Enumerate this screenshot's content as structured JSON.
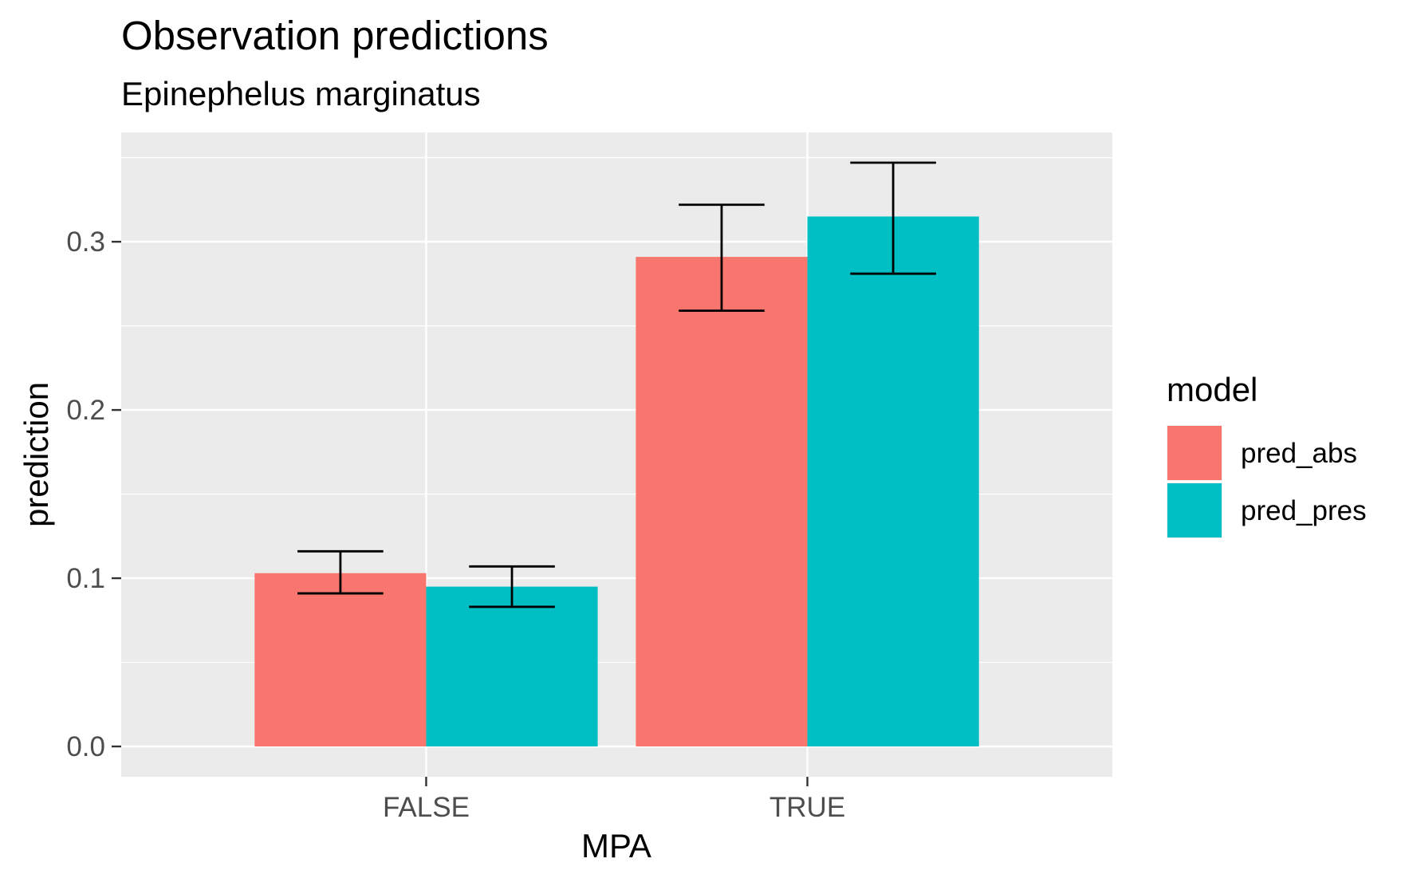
{
  "chart_data": {
    "type": "bar",
    "title": "Observation predictions",
    "subtitle": "Epinephelus marginatus",
    "xlabel": "MPA",
    "ylabel": "prediction",
    "categories": [
      "FALSE",
      "TRUE"
    ],
    "ylim": [
      -0.018,
      0.365
    ],
    "yticks": [
      0.0,
      0.1,
      0.2,
      0.3
    ],
    "ytick_labels": [
      "0.0",
      "0.1",
      "0.2",
      "0.3"
    ],
    "grid": true,
    "legend": {
      "title": "model",
      "position": "right"
    },
    "series": [
      {
        "name": "pred_abs",
        "color": "#F8766D",
        "values": [
          0.103,
          0.291
        ],
        "error_low": [
          0.091,
          0.259
        ],
        "error_high": [
          0.116,
          0.322
        ]
      },
      {
        "name": "pred_pres",
        "color": "#00BFC4",
        "values": [
          0.095,
          0.315
        ],
        "error_low": [
          0.083,
          0.281
        ],
        "error_high": [
          0.107,
          0.347
        ]
      }
    ],
    "panel_background": "#EBEBEB",
    "gridline_color": "#FFFFFF"
  }
}
